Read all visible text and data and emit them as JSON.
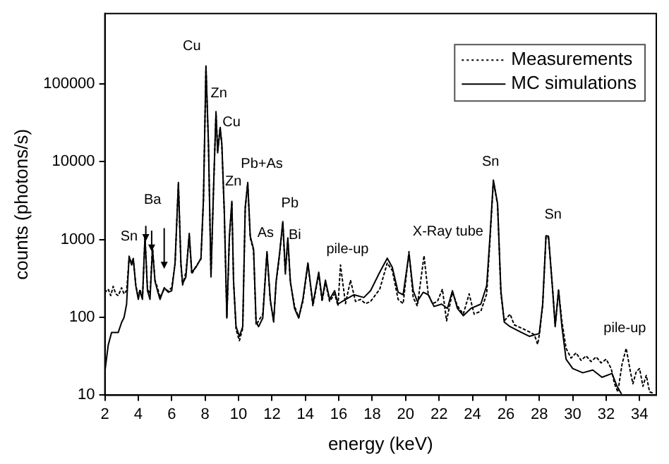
{
  "chart_data": {
    "type": "line",
    "xlabel": "energy (keV)",
    "ylabel": "counts (photons/s)",
    "xlim": [
      2,
      35
    ],
    "xticks": [
      2,
      4,
      6,
      8,
      10,
      12,
      14,
      16,
      18,
      20,
      22,
      24,
      26,
      28,
      30,
      32,
      34
    ],
    "ylim": [
      10,
      800000
    ],
    "yticks": [
      10,
      100,
      1000,
      10000,
      100000
    ],
    "log": "y",
    "grid": false,
    "legend": "top right",
    "marker": "none",
    "series": [
      {
        "name": "Measurements",
        "color": "#000000",
        "line_style": "dotted",
        "x": [
          2.0,
          2.2,
          2.35,
          2.5,
          2.65,
          2.8,
          3.0,
          3.15,
          3.3,
          3.45,
          3.6,
          3.7,
          3.85,
          4.0,
          4.1,
          4.25,
          4.4,
          4.55,
          4.7,
          4.85,
          5.0,
          5.15,
          5.3,
          5.55,
          5.8,
          6.0,
          6.2,
          6.4,
          6.55,
          6.65,
          6.85,
          7.05,
          7.2,
          7.45,
          7.75,
          7.9,
          8.05,
          8.2,
          8.35,
          8.5,
          8.65,
          8.75,
          8.9,
          9.0,
          9.15,
          9.3,
          9.45,
          9.6,
          9.7,
          9.85,
          10.05,
          10.25,
          10.4,
          10.55,
          10.7,
          10.9,
          11.05,
          11.2,
          11.45,
          11.7,
          11.9,
          12.1,
          12.25,
          12.45,
          12.65,
          12.8,
          12.95,
          13.1,
          13.35,
          13.6,
          13.85,
          14.15,
          14.45,
          14.8,
          15.0,
          15.2,
          15.45,
          15.75,
          15.95,
          16.1,
          16.4,
          16.7,
          17.0,
          17.3,
          17.6,
          17.9,
          18.45,
          18.9,
          19.2,
          19.55,
          19.85,
          20.2,
          20.45,
          20.7,
          21.1,
          21.35,
          21.6,
          21.9,
          22.2,
          22.45,
          22.8,
          23.1,
          23.45,
          23.8,
          24.1,
          24.5,
          24.85,
          25.05,
          25.25,
          25.5,
          25.7,
          25.9,
          26.25,
          26.5,
          26.8,
          27.1,
          27.4,
          27.7,
          27.9,
          28.0,
          28.2,
          28.4,
          28.55,
          28.8,
          28.95,
          29.15,
          29.35,
          29.6,
          29.9,
          30.2,
          30.5,
          30.8,
          31.1,
          31.4,
          31.7,
          32.0,
          32.3,
          32.5,
          32.7,
          32.95,
          33.2,
          33.45,
          33.6,
          33.8,
          34.0,
          34.2,
          34.4,
          34.6,
          34.9
        ],
        "values": [
          210,
          230,
          190,
          250,
          200,
          190,
          240,
          200,
          220,
          560,
          520,
          560,
          260,
          180,
          230,
          170,
          1050,
          230,
          200,
          800,
          300,
          240,
          180,
          230,
          220,
          240,
          480,
          5200,
          480,
          260,
          380,
          1100,
          360,
          450,
          560,
          3200,
          165000,
          16000,
          340,
          4200,
          42000,
          14000,
          28000,
          16000,
          2100,
          100,
          1000,
          3000,
          300,
          70,
          50,
          72,
          2500,
          5200,
          1050,
          720,
          80,
          90,
          110,
          680,
          160,
          90,
          280,
          620,
          1650,
          360,
          1000,
          280,
          140,
          100,
          160,
          480,
          140,
          360,
          160,
          280,
          160,
          200,
          140,
          470,
          150,
          300,
          160,
          170,
          150,
          160,
          230,
          500,
          400,
          170,
          150,
          700,
          180,
          140,
          620,
          200,
          150,
          160,
          230,
          90,
          210,
          140,
          110,
          200,
          110,
          120,
          200,
          1000,
          5600,
          2800,
          200,
          90,
          110,
          80,
          75,
          70,
          65,
          60,
          45,
          60,
          140,
          1100,
          1050,
          220,
          78,
          220,
          90,
          40,
          30,
          35,
          28,
          32,
          27,
          31,
          26,
          29,
          22,
          14,
          11,
          25,
          40,
          20,
          14,
          20,
          22,
          13,
          18,
          11,
          10.5
        ]
      },
      {
        "name": "MC simulations",
        "color": "#000000",
        "line_style": "solid",
        "x": [
          2.0,
          2.2,
          2.4,
          2.8,
          3.0,
          3.15,
          3.3,
          3.45,
          3.6,
          3.7,
          3.85,
          4.0,
          4.1,
          4.25,
          4.4,
          4.55,
          4.7,
          4.85,
          5.0,
          5.15,
          5.3,
          5.55,
          5.8,
          6.0,
          6.2,
          6.4,
          6.55,
          6.65,
          6.85,
          7.05,
          7.2,
          7.45,
          7.75,
          7.9,
          8.05,
          8.2,
          8.35,
          8.5,
          8.65,
          8.75,
          8.9,
          9.0,
          9.15,
          9.3,
          9.45,
          9.6,
          9.7,
          9.85,
          10.05,
          10.25,
          10.4,
          10.55,
          10.7,
          10.9,
          11.05,
          11.2,
          11.45,
          11.7,
          11.9,
          12.1,
          12.25,
          12.45,
          12.65,
          12.8,
          12.95,
          13.1,
          13.35,
          13.6,
          13.85,
          14.15,
          14.45,
          14.8,
          15.0,
          15.2,
          15.45,
          15.75,
          15.95,
          16.4,
          16.9,
          17.5,
          17.9,
          18.45,
          18.9,
          19.2,
          19.55,
          19.85,
          20.2,
          20.45,
          20.7,
          21.05,
          21.35,
          21.7,
          22.15,
          22.5,
          22.8,
          23.1,
          23.45,
          23.9,
          24.5,
          24.85,
          25.05,
          25.25,
          25.5,
          25.7,
          25.9,
          26.25,
          26.8,
          27.4,
          28.0,
          28.2,
          28.4,
          28.55,
          28.8,
          28.95,
          29.15,
          29.35,
          29.6,
          30.0,
          30.6,
          31.2,
          31.75,
          32.35,
          32.65,
          32.9
        ],
        "values": [
          20,
          44,
          64,
          64,
          86,
          100,
          148,
          610,
          470,
          570,
          255,
          170,
          220,
          170,
          1120,
          220,
          170,
          750,
          290,
          220,
          170,
          240,
          210,
          220,
          500,
          5400,
          500,
          270,
          330,
          1200,
          380,
          440,
          575,
          3300,
          170000,
          17000,
          330,
          4300,
          44000,
          13000,
          27000,
          17000,
          2200,
          98,
          1100,
          3100,
          290,
          76,
          57,
          76,
          2600,
          5400,
          1100,
          750,
          87,
          76,
          98,
          700,
          170,
          87,
          290,
          650,
          1700,
          380,
          1050,
          290,
          130,
          98,
          170,
          500,
          148,
          380,
          170,
          300,
          170,
          220,
          148,
          170,
          195,
          180,
          220,
          380,
          575,
          440,
          210,
          195,
          660,
          220,
          160,
          210,
          195,
          138,
          148,
          130,
          220,
          130,
          105,
          130,
          148,
          255,
          1120,
          5800,
          2900,
          220,
          87,
          76,
          66,
          57,
          62,
          148,
          1120,
          1100,
          220,
          76,
          225,
          76,
          29,
          22,
          19.4,
          21,
          17,
          19,
          13,
          10.5
        ]
      }
    ],
    "annotations": [
      {
        "text": "Sn",
        "x": 3.45,
        "y": 610
      },
      {
        "text": "Ba",
        "x": 4.85,
        "y": 750
      },
      {
        "text": "Cu",
        "x": 8.05,
        "y": 170000
      },
      {
        "text": "Zn",
        "x": 8.65,
        "y": 44000
      },
      {
        "text": "Cu",
        "x": 8.9,
        "y": 27000
      },
      {
        "text": "Pb+As",
        "x": 10.55,
        "y": 5400
      },
      {
        "text": "Zn",
        "x": 9.6,
        "y": 3100
      },
      {
        "text": "Pb",
        "x": 12.65,
        "y": 1700
      },
      {
        "text": "As",
        "x": 11.7,
        "y": 700
      },
      {
        "text": "Bi",
        "x": 12.95,
        "y": 1050
      },
      {
        "text": "pile-up",
        "x": 16.1,
        "y": 470
      },
      {
        "text": "X-Ray tube",
        "x": 21.1,
        "y": 620
      },
      {
        "text": "Sn",
        "x": 25.25,
        "y": 5800
      },
      {
        "text": "Sn",
        "x": 28.4,
        "y": 1120
      },
      {
        "text": "pile-up",
        "x": 33.2,
        "y": 40
      }
    ]
  }
}
